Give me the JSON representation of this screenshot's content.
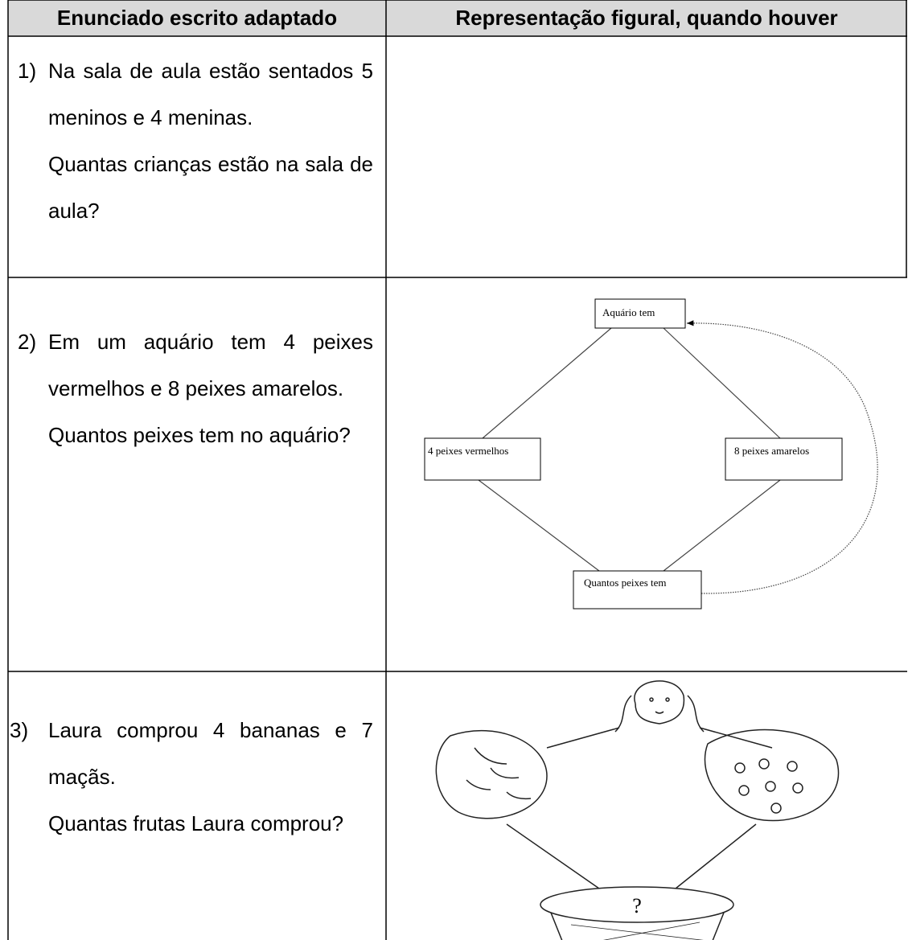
{
  "table": {
    "headers": [
      "Enunciado escrito adaptado",
      "Representação figural, quando houver"
    ],
    "rows": [
      {
        "number": "1)",
        "statement": "Na sala de aula estão sentados 5 meninos e 4 meninas.",
        "question": "Quantas crianças estão na sala de aula?"
      },
      {
        "number": "2)",
        "statement": "Em um aquário tem 4 peixes vermelhos e 8 peixes amarelos.",
        "question": "Quantos peixes tem no aquário?"
      },
      {
        "number": "3)",
        "statement": "Laura comprou 4 bananas e 7 maçãs.",
        "question": "Quantas frutas Laura comprou?"
      }
    ]
  },
  "diagram": {
    "nodes": [
      {
        "label": "Aquário tem"
      },
      {
        "label": "4 peixes vermelhos"
      },
      {
        "label": "8 peixes amarelos"
      },
      {
        "label": "Quantos peixes tem"
      }
    ]
  },
  "drawing": {
    "basket_label": "?"
  }
}
